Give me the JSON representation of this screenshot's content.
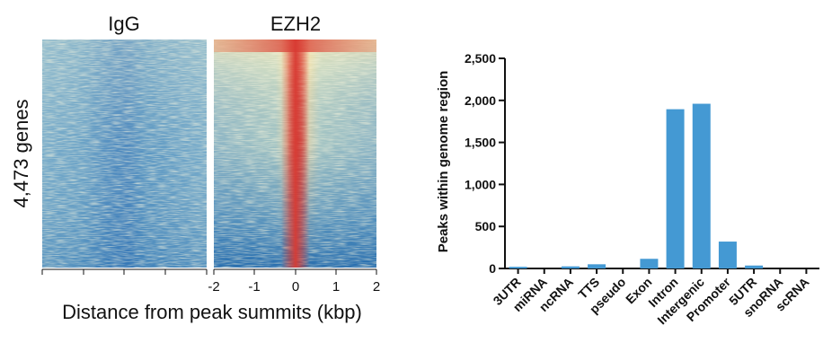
{
  "heatmaps": {
    "panels": [
      {
        "title": "IgG"
      },
      {
        "title": "EZH2"
      }
    ],
    "ylabel": "4,473 genes",
    "xlabel": "Distance from peak summits (kbp)",
    "xticks": [
      "-2",
      "-1",
      "0",
      "1",
      "2"
    ],
    "colors": {
      "low": "#2f78b8",
      "mid": "#f4ecbd",
      "high": "#d83a32"
    }
  },
  "chart_data": {
    "type": "bar",
    "title": "",
    "xlabel": "",
    "ylabel": "Peaks within genome region",
    "categories": [
      "3UTR",
      "miRNA",
      "ncRNA",
      "TTS",
      "pseudo",
      "Exon",
      "Intron",
      "Intergenic",
      "Promoter",
      "5UTR",
      "snoRNA",
      "scRNA"
    ],
    "values": [
      20,
      0,
      25,
      50,
      0,
      115,
      1895,
      1960,
      320,
      35,
      0,
      0
    ],
    "ylim": [
      0,
      2500
    ],
    "yticks": [
      0,
      500,
      1000,
      1500,
      2000,
      2500
    ],
    "ytick_labels": [
      "0",
      "500",
      "1,000",
      "1,500",
      "2,000",
      "2,500"
    ],
    "bar_color": "#4499d3",
    "grid": false
  }
}
